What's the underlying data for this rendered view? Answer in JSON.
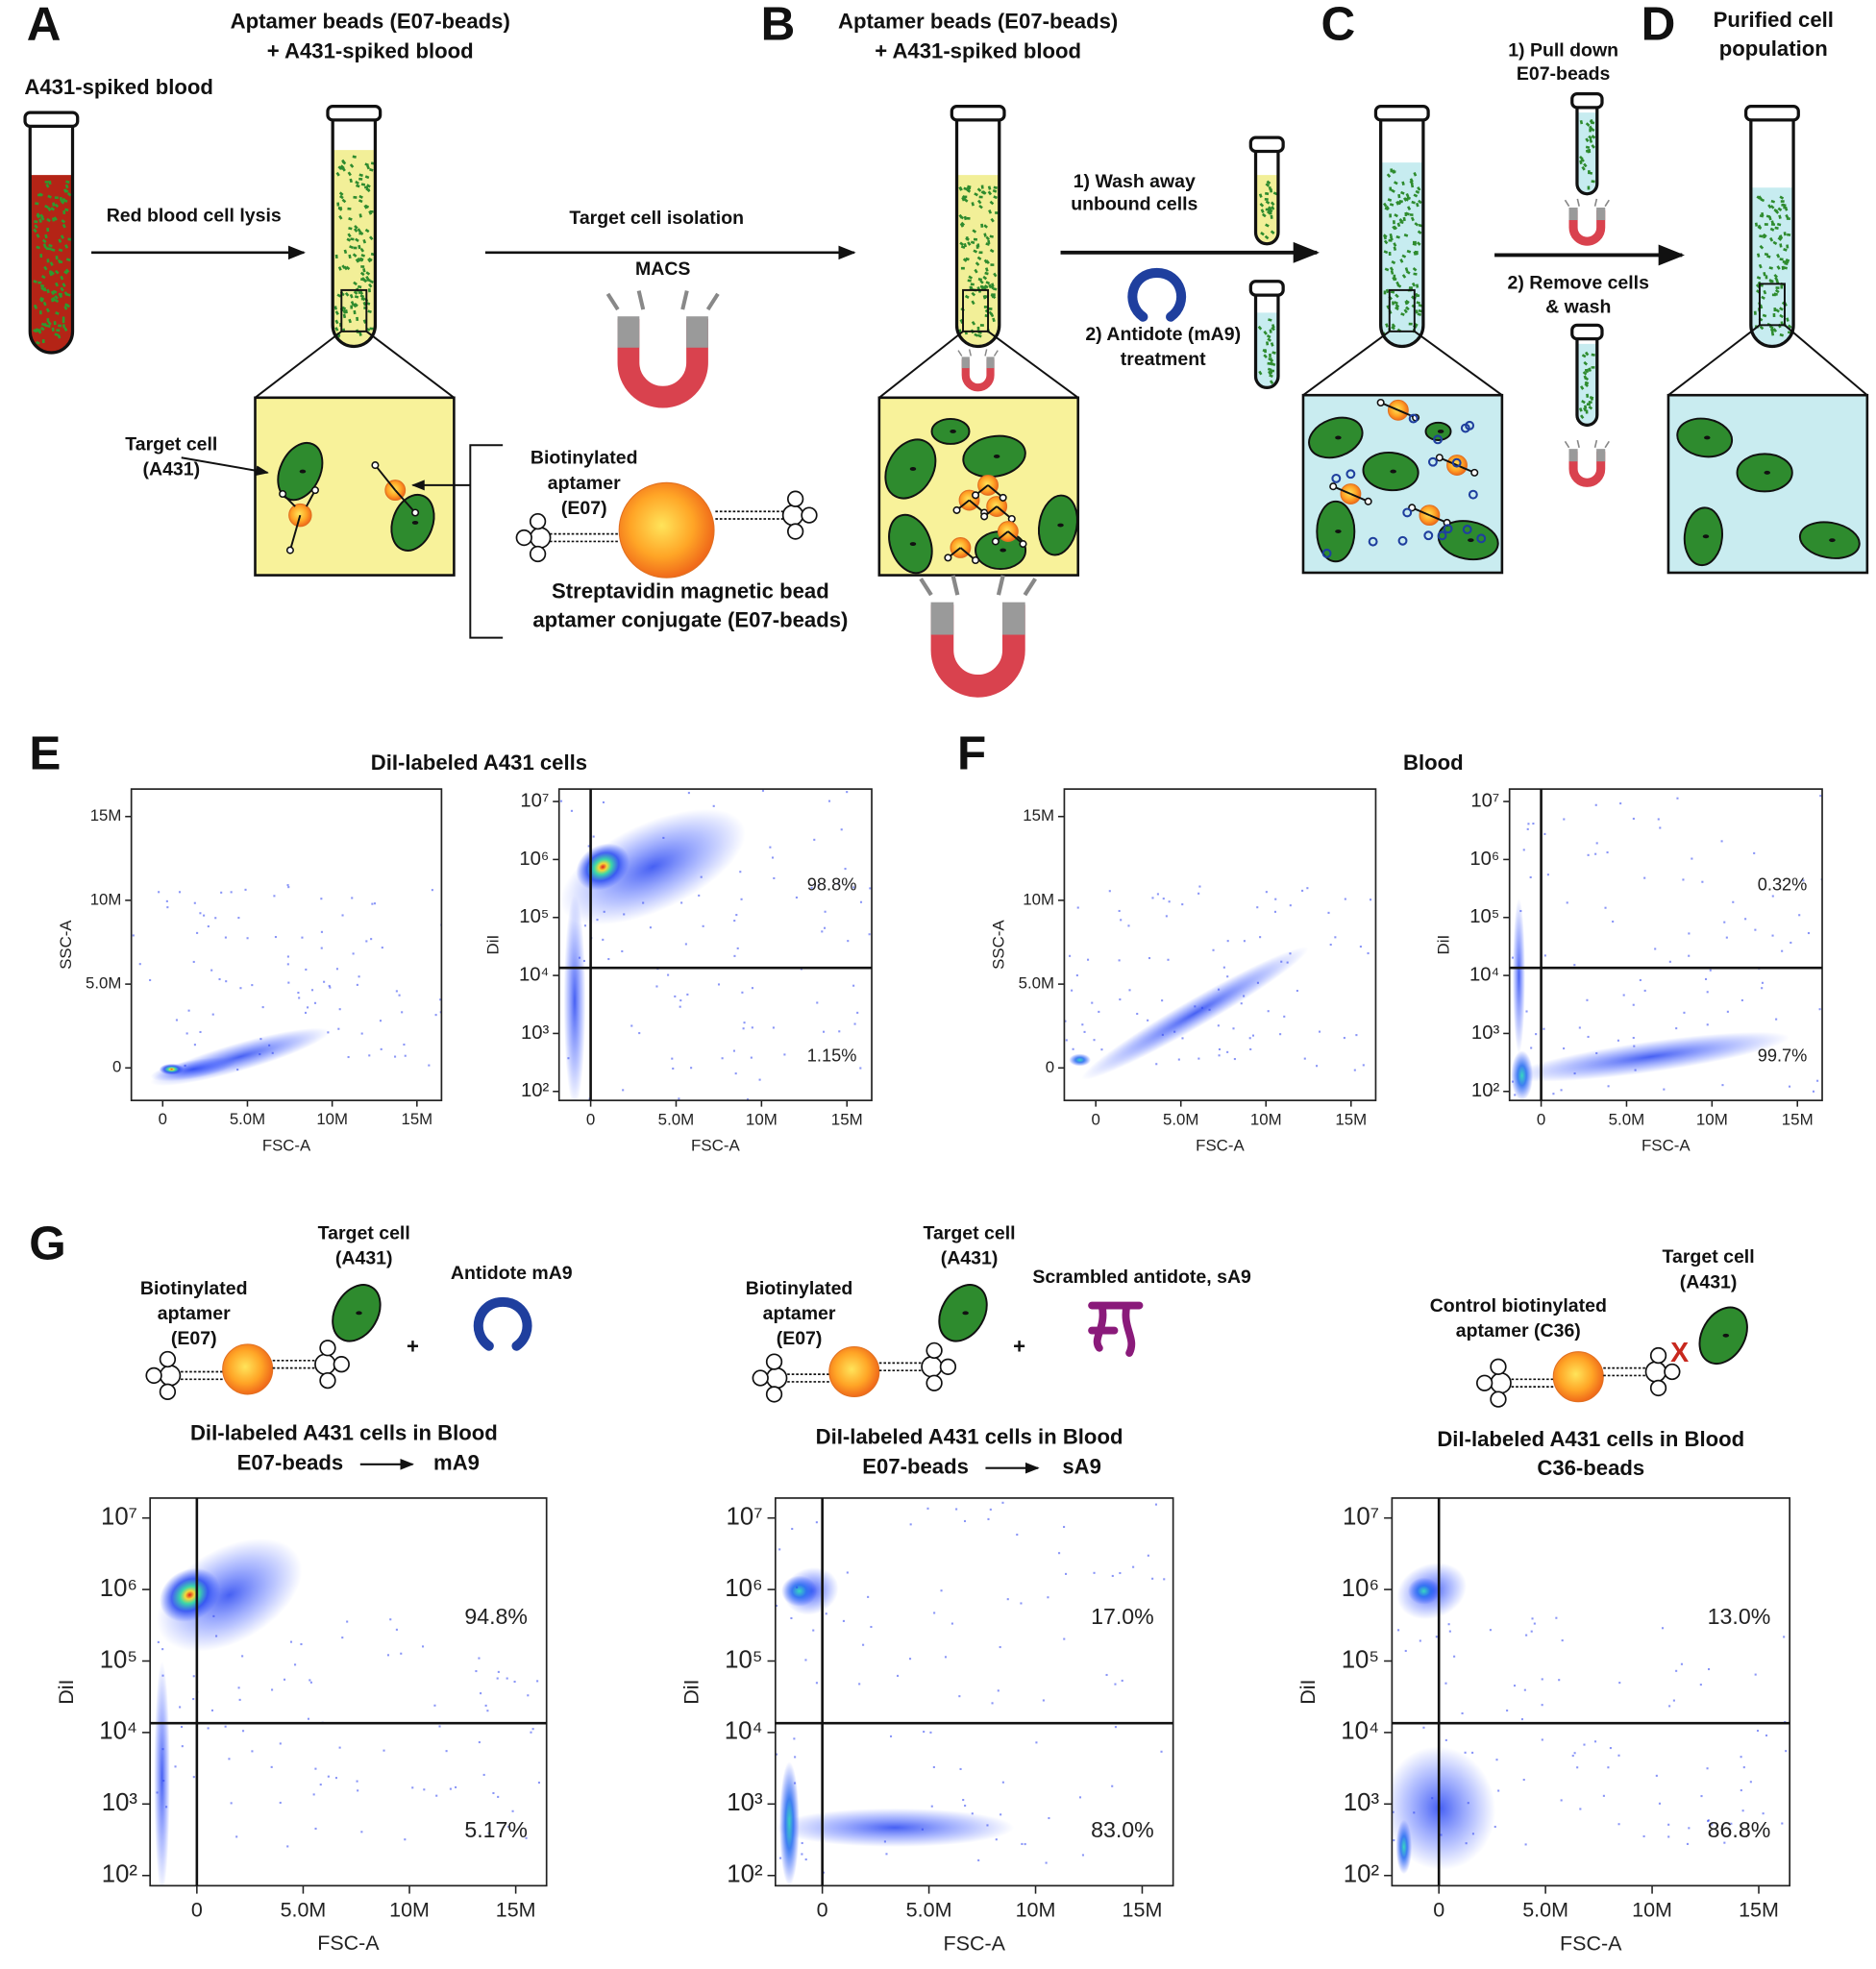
{
  "panel_letters": [
    "A",
    "B",
    "C",
    "D",
    "E",
    "F",
    "G"
  ],
  "panel_a": {
    "title": [
      "Aptamer beads (E07-beads)",
      "+ A431-spiked blood"
    ],
    "tube_label": "A431-spiked blood",
    "lysis": "Red blood cell lysis",
    "isolation": "Target cell isolation",
    "macs": "MACS",
    "target_cell": [
      "Target cell",
      "(A431)"
    ],
    "aptamer": [
      "Biotinylated",
      "aptamer",
      "(E07)"
    ],
    "conjugate": [
      "Streptavidin magnetic bead",
      "aptamer conjugate (E07-beads)"
    ]
  },
  "panel_b": {
    "title": [
      "Aptamer beads (E07-beads)",
      "+ A431-spiked blood"
    ],
    "wash": [
      "1) Wash away",
      "unbound cells"
    ],
    "antidote": [
      "2) Antidote (mA9)",
      "treatment"
    ]
  },
  "panel_c": {
    "pull": [
      "1) Pull down",
      "E07-beads"
    ],
    "remove": [
      "2) Remove cells",
      "& wash"
    ]
  },
  "panel_d": {
    "title": [
      "Purified cell",
      "population"
    ]
  },
  "panel_e": {
    "title": "DiI-labeled A431 cells"
  },
  "panel_f": {
    "title": "Blood"
  },
  "panel_g": [
    {
      "aptamer": [
        "Biotinylated",
        "aptamer",
        "(E07)"
      ],
      "target_cell": [
        "Target cell",
        "(A431)"
      ],
      "agent": "Antidote mA9",
      "plus": "+",
      "title": "DiI-labeled A431 cells in Blood",
      "flow": [
        "E07-beads",
        "mA9"
      ]
    },
    {
      "aptamer": [
        "Biotinylated",
        "aptamer",
        "(E07)"
      ],
      "target_cell": [
        "Target cell",
        "(A431)"
      ],
      "agent": "Scrambled antidote, sA9",
      "plus": "+",
      "title": "DiI-labeled A431 cells in Blood",
      "flow": [
        "E07-beads",
        "sA9"
      ]
    },
    {
      "aptamer": [
        "Control biotinylated",
        "aptamer (C36)"
      ],
      "target_cell": [
        "Target cell",
        "(A431)"
      ],
      "block": "X",
      "title": "DiI-labeled A431 cells in Blood",
      "subtitle": "C36-beads"
    }
  ],
  "plots": [
    {
      "xlabel": "FSC-A",
      "ylabel": "SSC-A",
      "yscale": "linear",
      "xlim": [
        -1850000,
        16450000
      ],
      "ylim": [
        -1940000,
        16640000
      ],
      "xticks": [
        0,
        {
          "value": 5000000,
          "label": "5.0M"
        },
        {
          "value": 10000000,
          "label": "10M"
        },
        {
          "value": 15000000,
          "label": "15M"
        }
      ],
      "yticks": [
        0,
        {
          "value": 5000000,
          "label": "5.0M"
        },
        {
          "value": 10000000,
          "label": "10M"
        },
        {
          "value": 15000000,
          "label": "15M"
        }
      ]
    },
    {
      "xlabel": "FSC-A",
      "ylabel": "DiI",
      "yscale": "log",
      "xlim": [
        -1850000,
        16450000
      ],
      "ylim": [
        70,
        16400000
      ],
      "xticks": [
        0,
        {
          "value": 5000000,
          "label": "5.0M"
        },
        {
          "value": 10000000,
          "label": "10M"
        },
        {
          "value": 15000000,
          "label": "15M"
        }
      ],
      "yticks": [
        {
          "value": 100,
          "label": "10²"
        },
        {
          "value": 1000,
          "label": "10³"
        },
        {
          "value": 10000,
          "label": "10⁴"
        },
        {
          "value": 100000,
          "label": "10⁵"
        },
        {
          "value": 1000000,
          "label": "10⁶"
        },
        {
          "value": 10000000,
          "label": "10⁷"
        }
      ],
      "gate_x": 0,
      "gate_y": 13500,
      "quadrant_labels": [
        "98.8%",
        "1.15%"
      ]
    },
    {
      "xlabel": "FSC-A",
      "ylabel": "SSC-A",
      "yscale": "linear",
      "xlim": [
        -1850000,
        16450000
      ],
      "ylim": [
        -1940000,
        16640000
      ],
      "xticks": [
        0,
        {
          "value": 5000000,
          "label": "5.0M"
        },
        {
          "value": 10000000,
          "label": "10M"
        },
        {
          "value": 15000000,
          "label": "15M"
        }
      ],
      "yticks": [
        0,
        {
          "value": 5000000,
          "label": "5.0M"
        },
        {
          "value": 10000000,
          "label": "10M"
        },
        {
          "value": 15000000,
          "label": "15M"
        }
      ]
    },
    {
      "xlabel": "FSC-A",
      "ylabel": "DiI",
      "yscale": "log",
      "xlim": [
        -1850000,
        16450000
      ],
      "ylim": [
        70,
        16400000
      ],
      "xticks": [
        0,
        {
          "value": 5000000,
          "label": "5.0M"
        },
        {
          "value": 10000000,
          "label": "10M"
        },
        {
          "value": 15000000,
          "label": "15M"
        }
      ],
      "yticks": [
        {
          "value": 100,
          "label": "10²"
        },
        {
          "value": 1000,
          "label": "10³"
        },
        {
          "value": 10000,
          "label": "10⁴"
        },
        {
          "value": 100000,
          "label": "10⁵"
        },
        {
          "value": 1000000,
          "label": "10⁶"
        },
        {
          "value": 10000000,
          "label": "10⁷"
        }
      ],
      "gate_x": 0,
      "gate_y": 13500,
      "quadrant_labels": [
        "0.32%",
        "99.7%"
      ]
    },
    {
      "xlabel": "FSC-A",
      "ylabel": "DiI",
      "yscale": "log",
      "xlim": [
        -2200000,
        16450000
      ],
      "ylim": [
        72,
        19000000
      ],
      "xticks": [
        0,
        {
          "value": 5000000,
          "label": "5.0M"
        },
        {
          "value": 10000000,
          "label": "10M"
        },
        {
          "value": 15000000,
          "label": "15M"
        }
      ],
      "yticks": [
        {
          "value": 100,
          "label": "10²"
        },
        {
          "value": 1000,
          "label": "10³"
        },
        {
          "value": 10000,
          "label": "10⁴"
        },
        {
          "value": 100000,
          "label": "10⁵"
        },
        {
          "value": 1000000,
          "label": "10⁶"
        },
        {
          "value": 10000000,
          "label": "10⁷"
        }
      ],
      "gate_x": 0,
      "gate_y": 13500,
      "quadrant_labels": [
        "94.8%",
        "5.17%"
      ]
    },
    {
      "xlabel": "FSC-A",
      "ylabel": "DiI",
      "yscale": "log",
      "xlim": [
        -2200000,
        16450000
      ],
      "ylim": [
        72,
        19000000
      ],
      "xticks": [
        0,
        {
          "value": 5000000,
          "label": "5.0M"
        },
        {
          "value": 10000000,
          "label": "10M"
        },
        {
          "value": 15000000,
          "label": "15M"
        }
      ],
      "yticks": [
        {
          "value": 100,
          "label": "10²"
        },
        {
          "value": 1000,
          "label": "10³"
        },
        {
          "value": 10000,
          "label": "10⁴"
        },
        {
          "value": 100000,
          "label": "10⁵"
        },
        {
          "value": 1000000,
          "label": "10⁶"
        },
        {
          "value": 10000000,
          "label": "10⁷"
        }
      ],
      "gate_x": 0,
      "gate_y": 13500,
      "quadrant_labels": [
        "17.0%",
        "83.0%"
      ]
    },
    {
      "xlabel": "FSC-A",
      "ylabel": "DiI",
      "yscale": "log",
      "xlim": [
        -2200000,
        16450000
      ],
      "ylim": [
        72,
        19000000
      ],
      "xticks": [
        0,
        {
          "value": 5000000,
          "label": "5.0M"
        },
        {
          "value": 10000000,
          "label": "10M"
        },
        {
          "value": 15000000,
          "label": "15M"
        }
      ],
      "yticks": [
        {
          "value": 100,
          "label": "10²"
        },
        {
          "value": 1000,
          "label": "10³"
        },
        {
          "value": 10000,
          "label": "10⁴"
        },
        {
          "value": 100000,
          "label": "10⁵"
        },
        {
          "value": 1000000,
          "label": "10⁶"
        },
        {
          "value": 10000000,
          "label": "10⁷"
        }
      ],
      "gate_x": 0,
      "gate_y": 13500,
      "quadrant_labels": [
        "13.0%",
        "86.8%"
      ]
    }
  ]
}
